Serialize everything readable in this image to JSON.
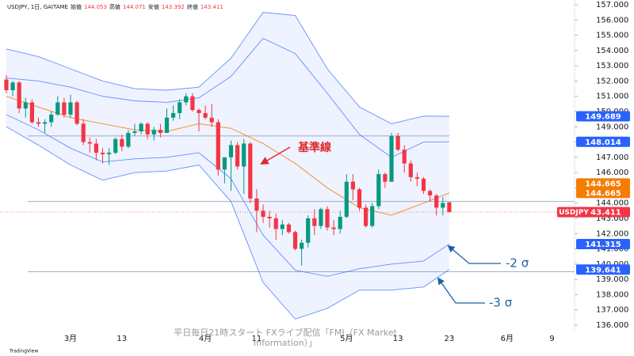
{
  "chart_data": {
    "type": "candlestick",
    "legend_title": "USDJPY, 1日, GAITAME",
    "ohlc_labels": [
      "始値",
      "高値",
      "安値",
      "終値"
    ],
    "symbol": "USDJPY",
    "categories": [
      null,
      null,
      null,
      null,
      null,
      null,
      null,
      null,
      null,
      null,
      "3月",
      null,
      null,
      null,
      null,
      null,
      null,
      null,
      "13",
      null,
      null,
      null,
      null,
      null,
      null,
      null,
      null,
      null,
      null,
      null,
      null,
      "4月",
      null,
      null,
      null,
      null,
      null,
      null,
      null,
      "11",
      null,
      null,
      null,
      null,
      null,
      null,
      null,
      null,
      null,
      null,
      null,
      null,
      null,
      "5月",
      null,
      null,
      null,
      null,
      null,
      null,
      null,
      "13",
      null,
      null,
      null,
      null,
      null,
      null,
      null,
      "23",
      null,
      null,
      null,
      null,
      null,
      null,
      null,
      null,
      "6月",
      null,
      null,
      null,
      null,
      null,
      null,
      "9",
      null,
      null
    ],
    "open": [
      152.1,
      151.4,
      151.9,
      150.2,
      150.6,
      149.3,
      149.2,
      149.3,
      149.8,
      150.6,
      149.8,
      150.6,
      149.2,
      148.0,
      147.9,
      147.3,
      147.2,
      147.3,
      148.2,
      147.7,
      148.6,
      148.7,
      149.2,
      148.5,
      148.8,
      148.6,
      149.6,
      149.9,
      150.6,
      151.0,
      150.1,
      149.9,
      149.6,
      149.3,
      146.2,
      147.0,
      147.8,
      146.4,
      147.9,
      144.3,
      143.5,
      143.1,
      143.0,
      142.3,
      142.6,
      142.1,
      141.0,
      141.4,
      143.0,
      142.5,
      143.6,
      142.4,
      142.3,
      143.1,
      145.4,
      144.9,
      143.7,
      142.5,
      143.8,
      145.9,
      145.4,
      148.4,
      147.5,
      146.6,
      145.7,
      145.6,
      144.8,
      144.5,
      143.7,
      144.053,
      null,
      null,
      null,
      null,
      null,
      null,
      null,
      null,
      null,
      null,
      null,
      null,
      null,
      null,
      null,
      null,
      null,
      null
    ],
    "high": [
      152.4,
      152.0,
      152.0,
      150.9,
      150.8,
      149.6,
      149.5,
      150.0,
      151.0,
      150.9,
      151.1,
      150.7,
      149.5,
      148.3,
      148.2,
      147.6,
      147.6,
      148.3,
      148.5,
      148.8,
      149.2,
      149.3,
      149.3,
      149.0,
      149.2,
      150.2,
      150.4,
      150.8,
      151.2,
      151.2,
      150.2,
      150.4,
      150.5,
      149.5,
      147.0,
      148.1,
      148.0,
      148.2,
      148.0,
      144.9,
      143.9,
      143.5,
      143.3,
      142.9,
      142.7,
      142.2,
      141.6,
      143.2,
      143.6,
      143.7,
      143.8,
      142.9,
      143.5,
      145.9,
      145.9,
      145.0,
      143.9,
      144.0,
      146.2,
      146.0,
      148.6,
      148.6,
      147.8,
      146.8,
      146.0,
      145.7,
      144.9,
      144.6,
      144.4,
      144.071,
      null,
      null,
      null,
      null,
      null,
      null,
      null,
      null,
      null,
      null,
      null,
      null,
      null,
      null,
      null,
      null,
      null,
      null
    ],
    "low": [
      151.2,
      151.0,
      149.9,
      149.6,
      149.2,
      149.0,
      148.6,
      149.0,
      149.7,
      149.6,
      149.6,
      149.1,
      147.8,
      147.3,
      146.8,
      146.6,
      146.5,
      147.2,
      147.4,
      147.6,
      148.4,
      148.5,
      148.2,
      148.1,
      148.3,
      148.6,
      149.4,
      149.5,
      150.4,
      150.0,
      148.7,
      149.5,
      149.0,
      145.8,
      145.3,
      144.8,
      146.2,
      144.6,
      144.0,
      142.1,
      142.7,
      142.4,
      141.6,
      141.9,
      142.0,
      140.9,
      139.9,
      141.1,
      141.9,
      142.3,
      142.2,
      141.9,
      142.0,
      143.0,
      144.2,
      143.5,
      142.4,
      142.4,
      143.6,
      145.0,
      145.4,
      147.4,
      146.0,
      145.4,
      145.1,
      144.6,
      144.1,
      143.2,
      143.2,
      143.392,
      null,
      null,
      null,
      null,
      null,
      null,
      null,
      null,
      null,
      null,
      null,
      null,
      null,
      null,
      null,
      null,
      null,
      null
    ],
    "close": [
      151.4,
      151.9,
      150.2,
      150.6,
      149.3,
      149.2,
      149.3,
      149.8,
      150.6,
      149.8,
      150.6,
      149.2,
      148.0,
      147.9,
      147.3,
      147.2,
      147.3,
      148.2,
      147.7,
      148.6,
      148.7,
      149.2,
      148.5,
      148.8,
      148.6,
      149.6,
      149.9,
      150.6,
      151.0,
      150.1,
      149.9,
      149.6,
      149.3,
      146.2,
      147.0,
      147.8,
      146.4,
      147.9,
      144.3,
      143.5,
      143.1,
      143.0,
      142.3,
      142.6,
      142.1,
      141.0,
      141.4,
      143.0,
      142.5,
      143.6,
      142.4,
      142.3,
      143.1,
      145.4,
      144.9,
      143.7,
      142.5,
      143.8,
      145.9,
      145.4,
      148.4,
      147.5,
      146.6,
      145.7,
      145.6,
      144.8,
      144.5,
      143.7,
      144.0,
      143.411,
      null,
      null,
      null,
      null,
      null,
      null,
      null,
      null,
      null,
      null,
      null,
      null,
      null,
      null,
      null,
      null,
      null,
      null
    ],
    "up_color": "#089981",
    "down_color": "#f23645",
    "bands_x": [
      0,
      5,
      10,
      15,
      20,
      25,
      30,
      35,
      40,
      45,
      50,
      55,
      60,
      65,
      69
    ],
    "bands": [
      {
        "color": "#2962ff",
        "values": [
          154.1,
          153.6,
          152.8,
          152.0,
          151.5,
          151.4,
          151.6,
          153.5,
          156.5,
          156.3,
          152.8,
          150.3,
          149.2,
          149.7,
          149.689
        ]
      },
      {
        "color": "#2962ff",
        "values": [
          152.2,
          152.0,
          151.6,
          151.0,
          150.7,
          150.6,
          150.9,
          152.3,
          154.8,
          153.8,
          151.2,
          148.5,
          147.0,
          148.0,
          148.014
        ]
      },
      {
        "color": "#f57c00",
        "values": [
          151.0,
          150.3,
          149.6,
          149.2,
          148.8,
          148.7,
          149.2,
          148.9,
          147.9,
          146.6,
          145.0,
          143.7,
          143.2,
          144.0,
          144.665
        ]
      },
      {
        "color": "#2962ff",
        "values": [
          149.8,
          148.8,
          147.6,
          146.7,
          146.9,
          147.0,
          147.3,
          145.6,
          141.9,
          139.6,
          139.2,
          139.7,
          140.0,
          140.2,
          141.315
        ]
      },
      {
        "color": "#2962ff",
        "values": [
          149.0,
          147.8,
          146.5,
          145.5,
          146.0,
          146.1,
          146.5,
          144.1,
          138.8,
          136.4,
          137.1,
          138.3,
          138.3,
          138.5,
          139.641
        ]
      }
    ],
    "band_fill": "rgba(41,98,255,0.08)",
    "hlines": [
      {
        "value": 148.4,
        "extend": false
      },
      {
        "value": 144.1,
        "extend": true
      },
      {
        "value": 139.5,
        "extend": true
      }
    ],
    "ylim": [
      136,
      157
    ],
    "yticks": [
      {
        "value": 136,
        "label": "136.000"
      },
      {
        "value": 137,
        "label": "137.000"
      },
      {
        "value": 138,
        "label": "138.000"
      },
      {
        "value": 139,
        "label": "139.000"
      },
      {
        "value": 140,
        "label": "140.000"
      },
      {
        "value": 141,
        "label": "141.000"
      },
      {
        "value": 142,
        "label": "142.000"
      },
      {
        "value": 143,
        "label": "143.000"
      },
      {
        "value": 144,
        "label": "144.000"
      },
      {
        "value": 145,
        "label": "145.000"
      },
      {
        "value": 146,
        "label": "146.000"
      },
      {
        "value": 147,
        "label": "147.000"
      },
      {
        "value": 148,
        "label": "148.000"
      },
      {
        "value": 149,
        "label": "149.000"
      },
      {
        "value": 150,
        "label": "150.000"
      },
      {
        "value": 151,
        "label": "151.000"
      },
      {
        "value": 152,
        "label": "152.000"
      },
      {
        "value": 153,
        "label": "153.000"
      },
      {
        "value": 154,
        "label": "154.000"
      },
      {
        "value": 155,
        "label": "155.000"
      },
      {
        "value": 156,
        "label": "156.000"
      },
      {
        "value": 157,
        "label": "157.000"
      }
    ],
    "annotations": [
      "基準線",
      "-2 σ",
      "-3 σ"
    ],
    "footer": [
      "平日毎日21時スタート FXライブ配信「FMI（FX Market",
      "Information）」"
    ],
    "branding": "TradingView"
  }
}
